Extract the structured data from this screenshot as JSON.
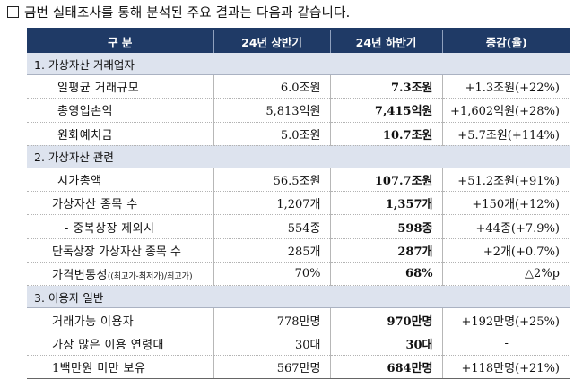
{
  "intro": {
    "bullet": "□",
    "text": "금번 실태조사를 통해 분석된 주요 결과는 다음과 같습니다."
  },
  "table": {
    "headers": [
      "구 분",
      "24년 상반기",
      "24년 하반기",
      "증감(율)"
    ],
    "sections": [
      {
        "title": "1. 가상자산 거래업자",
        "rows": [
          {
            "label": "일평균 거래규모",
            "h1": "6.0조원",
            "h2": "7.3조원",
            "change": "+1.3조원(+22%)"
          },
          {
            "label": "총영업손익",
            "h1": "5,813억원",
            "h2": "7,415억원",
            "change": "+1,602억원(+28%)"
          },
          {
            "label": "원화예치금",
            "h1": "5.0조원",
            "h2": "10.7조원",
            "change": "+5.7조원(+114%)"
          }
        ]
      },
      {
        "title": "2. 가상자산 관련",
        "rows": [
          {
            "label": "시가총액",
            "h1": "56.5조원",
            "h2": "107.7조원",
            "change": "+51.2조원(+91%)"
          },
          {
            "label": "가상자산 종목 수",
            "h1": "1,207개",
            "h2": "1,357개",
            "change": "+150개(+12%)"
          },
          {
            "label": "- 중복상장 제외시",
            "h1": "554종",
            "h2": "598종",
            "change": "+44종(+7.9%)"
          },
          {
            "label": "단독상장 가상자산 종목 수",
            "h1": "285개",
            "h2": "287개",
            "change": "+2개(+0.7%)"
          },
          {
            "label": "가격변동성",
            "label_note": "((최고가-최저가)/최고가)",
            "h1": "70%",
            "h2": "68%",
            "change": "△2%p"
          }
        ]
      },
      {
        "title": "3. 이용자 일반",
        "rows": [
          {
            "label": "거래가능 이용자",
            "h1": "778만명",
            "h2": "970만명",
            "change": "+192만명(+25%)"
          },
          {
            "label": "가장 많은 이용 연령대",
            "h1": "30대",
            "h2": "30대",
            "change": "-"
          },
          {
            "label": "1백만원 미만 보유",
            "h1": "567만명",
            "h2": "684만명",
            "change": "+118만명(+21%)"
          }
        ]
      }
    ]
  }
}
